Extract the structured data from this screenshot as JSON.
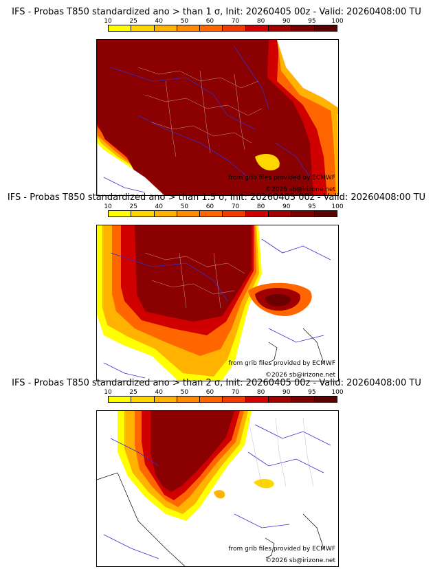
{
  "legend": {
    "ticks": [
      "10",
      "25",
      "40",
      "50",
      "60",
      "70",
      "80",
      "90",
      "95",
      "100"
    ],
    "colors": [
      "#ffff00",
      "#ffd700",
      "#ffb300",
      "#ff8c00",
      "#ff6600",
      "#f03c00",
      "#d00000",
      "#a00000",
      "#7a0000",
      "#5a0000"
    ]
  },
  "credits": {
    "source": "from grib files provided by ECMWF",
    "copyright": "©2026 sb@irizone.net"
  },
  "panels": [
    {
      "title": "IFS - Probas T850  standardized ano > than 1 σ, Init: 20260405 00z - Valid: 20260408:00 TU",
      "threshold": "1 σ"
    },
    {
      "title": "IFS - Probas T850  standardized ano > than 1.5 σ, Init: 20260405 00z - Valid: 20260408:00 TU",
      "threshold": "1.5 σ"
    },
    {
      "title": "IFS - Probas T850  standardized ano > than 2 σ, Init: 20260405 00z - Valid: 20260408:00 TU",
      "threshold": "2 σ"
    }
  ]
}
